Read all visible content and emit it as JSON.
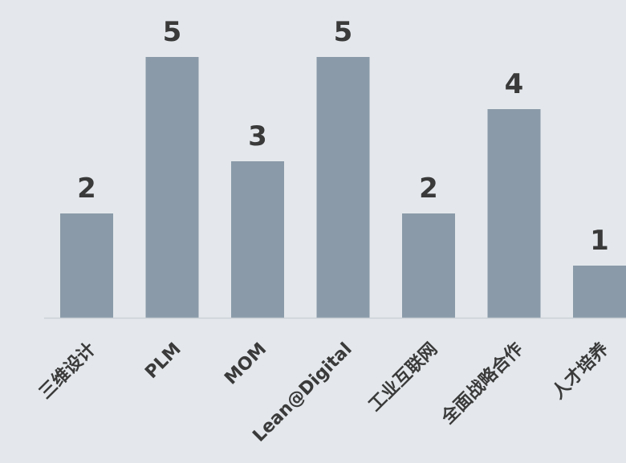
{
  "chart_data": {
    "type": "bar",
    "categories": [
      "三维设计",
      "PLM",
      "MOM",
      "Lean@Digital",
      "工业互联网",
      "全面战略合作",
      "人才培养"
    ],
    "values": [
      2,
      5,
      3,
      5,
      2,
      4,
      1
    ],
    "title": "",
    "xlabel": "",
    "ylabel": "",
    "ylim": [
      0,
      5
    ],
    "grid": false,
    "legend": "none",
    "data_labels": true,
    "bar_color": "#8a9aa8",
    "label_color": "#3a3a3a",
    "background_color": "#e4e8ec"
  }
}
